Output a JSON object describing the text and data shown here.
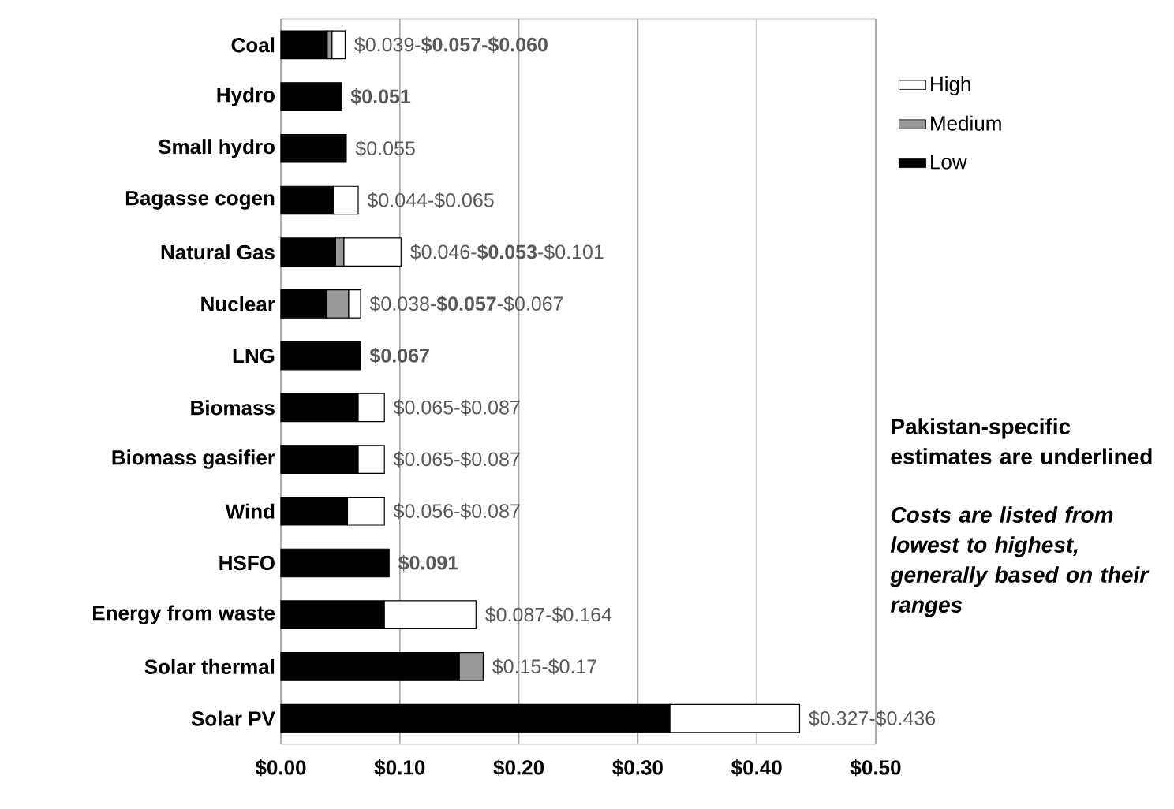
{
  "chart_data": {
    "type": "bar",
    "orientation": "horizontal",
    "stacked": true,
    "categories": [
      "Coal",
      "Hydro",
      "Small hydro",
      "Bagasse cogen",
      "Natural Gas",
      "Nuclear",
      "LNG",
      "Biomass",
      "Biomass gasifier",
      "Wind",
      "HSFO",
      "Energy from waste",
      "Solar thermal",
      "Solar PV"
    ],
    "series": [
      {
        "name": "Low",
        "color": "#000000",
        "values": [
          0.039,
          0.051,
          0.055,
          0.044,
          0.046,
          0.038,
          0.067,
          0.065,
          0.065,
          0.056,
          0.091,
          0.087,
          0.15,
          0.327
        ]
      },
      {
        "name": "Medium",
        "color": "#999999",
        "values": [
          0.004,
          null,
          null,
          null,
          0.007,
          0.019,
          null,
          null,
          null,
          null,
          null,
          null,
          0.02,
          null
        ]
      },
      {
        "name": "High",
        "color": "#ffffff",
        "values": [
          0.011,
          null,
          null,
          0.021,
          0.048,
          0.01,
          null,
          0.022,
          0.022,
          0.031,
          null,
          0.077,
          null,
          0.109
        ]
      }
    ],
    "totals": [
      "$0.039-**$0.057-$0.060**",
      "**$0.051**",
      "$0.055",
      "$0.044-$0.065",
      "$0.046-**$0.053**-$0.101",
      "$0.038-**$0.057**-$0.067",
      "**$0.067**",
      "$0.065-$0.087",
      "$0.065-$0.087",
      "$0.056-$0.087",
      "**$0.091**",
      "$0.087-$0.164",
      "$0.15-$0.17",
      "$0.327-$0.436"
    ],
    "xlim": [
      0,
      0.5
    ],
    "xticks": [
      {
        "value": 0,
        "label": "$0.00"
      },
      {
        "value": 0.1,
        "label": "$0.10"
      },
      {
        "value": 0.2,
        "label": "$0.20"
      },
      {
        "value": 0.3,
        "label": "$0.30"
      },
      {
        "value": 0.4,
        "label": "$0.40"
      },
      {
        "value": 0.5,
        "label": "$0.50"
      }
    ],
    "grid": "x",
    "legend": "right",
    "annotations": [
      "Pakistan-specific estimates are underlined",
      "Costs are listed from lowest to highest, generally based on their ranges"
    ]
  }
}
